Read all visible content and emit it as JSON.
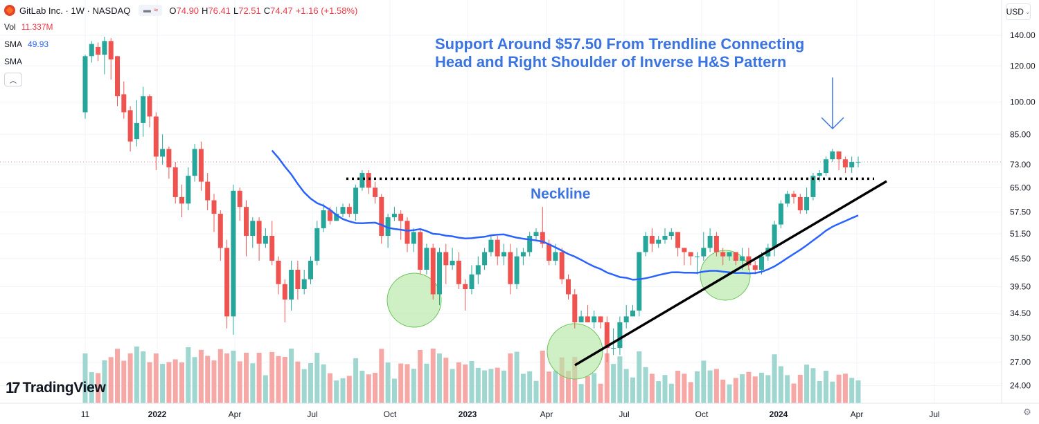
{
  "header": {
    "symbol": "GitLab Inc. · 1W · NASDAQ",
    "ohlc": {
      "o_label": "O",
      "o": "74.90",
      "h_label": "H",
      "h": "76.41",
      "l_label": "L",
      "l": "72.51",
      "c_label": "C",
      "c": "74.47",
      "change": "+1.16 (+1.58%)"
    },
    "vol_label": "Vol",
    "vol_value": "11.337M",
    "sma1_label": "SMA",
    "sma1_value": "49.93",
    "sma2_label": "SMA",
    "collapse_icon": "chevron-up-icon"
  },
  "currency_label": "USD",
  "brand": {
    "text": "TradingView",
    "mark": "17"
  },
  "colors": {
    "up": "#26a69a",
    "down": "#ef5350",
    "sma": "#2962ff",
    "annotation": "#3b74e0",
    "neckline": "#000000",
    "trendline": "#000000",
    "circle_fill": "#b5e8a6",
    "circle_stroke": "#6cc45a",
    "vol_up": "#9fd6cf",
    "vol_down": "#f6a8a6",
    "grid": "#f0f3fa",
    "price_line": "#f23645"
  },
  "chart_data": {
    "type": "candlestick",
    "title": "GitLab Inc. · 1W · NASDAQ",
    "scale": "log",
    "ylim": [
      22,
      150
    ],
    "x_ticks": [
      "11",
      "2022",
      "Apr",
      "Jul",
      "Oct",
      "2023",
      "Apr",
      "Jul",
      "Oct",
      "2024",
      "Apr",
      "Jul"
    ],
    "y_ticks": [
      140.0,
      120.0,
      100.0,
      85.0,
      73.0,
      65.0,
      57.5,
      51.5,
      45.5,
      39.5,
      34.5,
      30.5,
      27.0,
      24.0
    ],
    "series": [
      {
        "name": "SMA",
        "values": []
      }
    ],
    "annotations": {
      "headline_line1": "Support Around $57.50 From Trendline Connecting",
      "headline_line2": "Head and Right Shoulder of Inverse H&S Pattern",
      "neckline_label": "Neckline",
      "neckline_price": 68
    },
    "candles": [
      [
        95,
        126,
        92,
        127
      ],
      [
        126,
        134,
        122,
        136
      ],
      [
        132,
        127,
        123,
        135
      ],
      [
        127,
        136,
        115,
        139
      ],
      [
        136,
        124,
        112,
        138
      ],
      [
        126,
        103,
        98,
        126
      ],
      [
        104,
        95,
        92,
        111
      ],
      [
        96,
        82,
        78,
        98
      ],
      [
        83,
        90,
        80,
        101
      ],
      [
        90,
        103,
        84,
        108
      ],
      [
        103,
        93,
        88,
        104
      ],
      [
        93,
        76,
        71,
        95
      ],
      [
        76,
        79,
        73,
        85
      ],
      [
        79,
        72,
        68,
        80
      ],
      [
        72,
        62,
        60,
        74
      ],
      [
        62,
        60,
        56,
        66
      ],
      [
        60,
        69,
        58,
        72
      ],
      [
        69,
        79,
        67,
        81
      ],
      [
        79,
        67,
        64,
        82
      ],
      [
        67,
        61,
        58,
        70
      ],
      [
        61,
        57,
        52,
        63
      ],
      [
        57,
        48,
        45,
        58
      ],
      [
        48,
        34,
        32,
        50
      ],
      [
        34,
        64,
        31,
        66
      ],
      [
        64,
        59,
        55,
        65
      ],
      [
        59,
        51,
        46,
        61
      ],
      [
        51,
        55,
        48,
        56
      ],
      [
        55,
        49,
        45,
        56
      ],
      [
        49,
        51,
        48,
        53
      ],
      [
        51,
        45,
        44,
        55
      ],
      [
        45,
        40,
        38,
        46
      ],
      [
        40,
        37,
        33,
        41
      ],
      [
        37,
        43,
        35,
        45
      ],
      [
        43,
        39,
        37,
        45
      ],
      [
        39,
        41,
        38,
        43
      ],
      [
        41,
        45,
        40,
        46
      ],
      [
        45,
        53,
        44,
        55
      ],
      [
        53,
        58,
        52,
        60
      ],
      [
        58,
        55,
        54,
        59
      ],
      [
        55,
        57,
        55,
        59
      ],
      [
        57,
        59,
        56,
        60
      ],
      [
        59,
        57,
        56,
        60
      ],
      [
        57,
        65,
        55,
        66
      ],
      [
        65,
        70,
        64,
        71
      ],
      [
        70,
        65,
        63,
        71
      ],
      [
        65,
        62,
        60,
        67
      ],
      [
        62,
        51,
        49,
        63
      ],
      [
        51,
        56,
        48,
        57
      ],
      [
        56,
        57,
        55,
        59
      ],
      [
        57,
        55,
        50,
        58
      ],
      [
        55,
        49,
        47,
        56
      ],
      [
        49,
        52,
        47,
        53
      ],
      [
        52,
        43,
        42,
        53
      ],
      [
        43,
        48,
        42,
        49
      ],
      [
        48,
        38,
        37,
        49
      ],
      [
        38,
        47,
        36,
        48
      ],
      [
        47,
        44,
        40,
        49
      ],
      [
        44,
        45,
        43,
        48
      ],
      [
        45,
        40,
        39,
        47
      ],
      [
        40,
        39,
        35,
        41
      ],
      [
        39,
        42,
        38,
        44
      ],
      [
        42,
        44,
        40,
        46
      ],
      [
        44,
        47,
        43,
        48
      ],
      [
        47,
        50,
        46,
        51
      ],
      [
        50,
        46,
        44,
        51
      ],
      [
        46,
        47,
        44,
        49
      ],
      [
        47,
        40,
        38,
        49
      ],
      [
        40,
        46,
        39,
        48
      ],
      [
        46,
        47,
        44,
        48
      ],
      [
        47,
        51,
        46,
        52
      ],
      [
        51,
        52,
        50,
        53
      ],
      [
        52,
        49,
        48,
        59
      ],
      [
        49,
        45,
        44,
        50
      ],
      [
        45,
        47,
        44,
        49
      ],
      [
        47,
        41,
        40,
        48
      ],
      [
        41,
        38,
        37,
        42
      ],
      [
        38,
        33,
        32,
        39
      ],
      [
        33,
        34,
        33,
        35
      ],
      [
        34,
        33,
        33,
        36
      ],
      [
        33,
        34,
        32,
        35
      ],
      [
        34,
        33,
        32,
        34
      ],
      [
        33,
        29,
        27,
        34
      ],
      [
        29,
        29,
        28,
        32
      ],
      [
        29,
        33,
        28,
        34
      ],
      [
        33,
        34,
        32,
        36
      ],
      [
        34,
        35,
        34,
        36
      ],
      [
        35,
        47,
        34,
        47
      ],
      [
        47,
        51,
        46,
        52
      ],
      [
        51,
        49,
        47,
        53
      ],
      [
        49,
        50,
        48,
        51
      ],
      [
        50,
        51,
        49,
        53
      ],
      [
        51,
        52,
        50,
        53
      ],
      [
        52,
        48,
        46,
        52
      ],
      [
        48,
        47,
        44,
        48
      ],
      [
        47,
        46,
        44,
        47
      ],
      [
        46,
        46,
        42,
        47
      ],
      [
        46,
        48,
        45,
        52
      ],
      [
        48,
        51,
        47,
        53
      ],
      [
        51,
        47,
        46,
        52
      ],
      [
        47,
        46,
        44,
        48
      ],
      [
        46,
        47,
        45,
        47
      ],
      [
        47,
        45,
        44,
        47
      ],
      [
        45,
        46,
        43,
        48
      ],
      [
        46,
        44,
        43,
        48
      ],
      [
        44,
        43,
        42,
        45
      ],
      [
        43,
        46,
        42,
        47
      ],
      [
        46,
        48,
        45,
        49
      ],
      [
        48,
        54,
        46,
        55
      ],
      [
        54,
        60,
        53,
        61
      ],
      [
        60,
        63,
        59,
        64
      ],
      [
        63,
        62,
        60,
        64
      ],
      [
        62,
        58,
        57,
        63
      ],
      [
        58,
        62,
        57,
        65
      ],
      [
        62,
        69,
        61,
        70
      ],
      [
        69,
        70,
        67,
        71
      ],
      [
        70,
        75,
        69,
        76
      ],
      [
        75,
        78,
        74,
        79
      ],
      [
        78,
        75,
        71,
        78
      ],
      [
        75,
        72,
        70,
        76
      ],
      [
        72,
        74,
        70,
        76
      ],
      [
        74,
        74,
        72,
        76
      ]
    ]
  }
}
